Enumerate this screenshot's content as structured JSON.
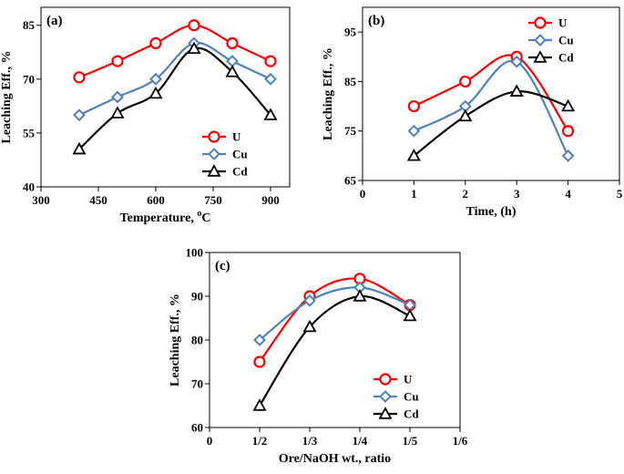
{
  "chart_data": [
    {
      "type": "line",
      "panel": "(a)",
      "xlabel": "Temperature, ",
      "xlabel_sup": "o",
      "xlabel_tail": "C",
      "ylabel": "Leaching Eff., %",
      "xlim": [
        300,
        950
      ],
      "ylim": [
        40,
        90
      ],
      "xticks": [
        300,
        450,
        600,
        750,
        900
      ],
      "xtick_labels": [
        "300",
        "450",
        "600",
        "750",
        "900"
      ],
      "yticks": [
        40,
        55,
        70,
        85
      ],
      "ytick_labels": [
        "40",
        "55",
        "70",
        "85"
      ],
      "legend_position": "bottom-right",
      "series": [
        {
          "name": "U",
          "color": "#ff0000",
          "marker": "circle",
          "x": [
            400,
            500,
            600,
            700,
            800,
            900
          ],
          "values": [
            70.5,
            75,
            80,
            85,
            80,
            75
          ]
        },
        {
          "name": "Cu",
          "color": "#4f81bd",
          "marker": "diamond",
          "x": [
            400,
            500,
            600,
            700,
            800,
            900
          ],
          "values": [
            60,
            65,
            70,
            80,
            75,
            70
          ]
        },
        {
          "name": "Cd",
          "color": "#000000",
          "marker": "triangle",
          "x": [
            400,
            500,
            600,
            700,
            800,
            900
          ],
          "values": [
            50.5,
            60.5,
            66,
            78.5,
            72,
            60
          ]
        }
      ]
    },
    {
      "type": "line",
      "panel": "(b)",
      "xlabel": "Time, (h)",
      "ylabel": "Leaching Eff., %",
      "xlim": [
        0,
        5
      ],
      "ylim": [
        65,
        100
      ],
      "xticks": [
        0,
        1,
        2,
        3,
        4,
        5
      ],
      "xtick_labels": [
        "0",
        "1",
        "2",
        "3",
        "4",
        "5"
      ],
      "yticks": [
        65,
        75,
        85,
        95
      ],
      "ytick_labels": [
        "65",
        "75",
        "85",
        "95"
      ],
      "legend_position": "top-right",
      "series": [
        {
          "name": "U",
          "color": "#ff0000",
          "marker": "circle",
          "x": [
            1,
            2,
            3,
            4
          ],
          "values": [
            80,
            85,
            90,
            75
          ]
        },
        {
          "name": "Cu",
          "color": "#4f81bd",
          "marker": "diamond",
          "x": [
            1,
            2,
            3,
            4
          ],
          "values": [
            75,
            80,
            89,
            70
          ]
        },
        {
          "name": "Cd",
          "color": "#000000",
          "marker": "triangle",
          "x": [
            1,
            2,
            3,
            4
          ],
          "values": [
            70,
            78,
            83,
            80
          ]
        }
      ]
    },
    {
      "type": "line",
      "panel": "(c)",
      "xlabel": "Ore/NaOH wt., ratio",
      "ylabel": "Leaching Eff., %",
      "xlim": [
        0,
        1
      ],
      "ylim": [
        60,
        100
      ],
      "xticks": [
        0,
        0.2,
        0.4,
        0.6,
        0.8,
        1.0
      ],
      "xtick_labels": [
        "0",
        "1/2",
        "1/3",
        "1/4",
        "1/5",
        "1/6"
      ],
      "yticks": [
        60,
        70,
        80,
        90,
        100
      ],
      "ytick_labels": [
        "60",
        "70",
        "80",
        "90",
        "100"
      ],
      "legend_position": "bottom-right",
      "series": [
        {
          "name": "U",
          "color": "#ff0000",
          "marker": "circle",
          "x": [
            0.2,
            0.4,
            0.6,
            0.8
          ],
          "values": [
            75,
            90,
            94,
            88
          ]
        },
        {
          "name": "Cu",
          "color": "#4f81bd",
          "marker": "diamond",
          "x": [
            0.2,
            0.4,
            0.6,
            0.8
          ],
          "values": [
            80,
            89,
            92,
            88
          ]
        },
        {
          "name": "Cd",
          "color": "#000000",
          "marker": "triangle",
          "x": [
            0.2,
            0.4,
            0.6,
            0.8
          ],
          "values": [
            65,
            83,
            90,
            85.5
          ]
        }
      ]
    }
  ]
}
